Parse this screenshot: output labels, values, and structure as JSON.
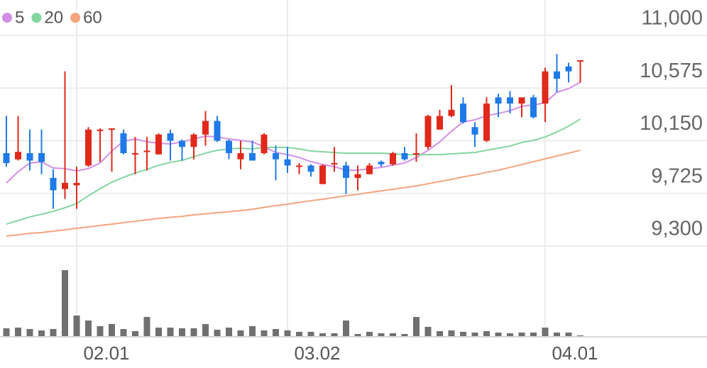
{
  "chart_data": {
    "type": "candlestick",
    "categories": [
      null,
      null,
      null,
      null,
      null,
      null,
      "02.01",
      null,
      null,
      null,
      null,
      null,
      null,
      null,
      null,
      null,
      null,
      null,
      null,
      null,
      null,
      null,
      null,
      null,
      "03.02",
      null,
      null,
      null,
      null,
      null,
      null,
      null,
      null,
      null,
      null,
      null,
      null,
      null,
      null,
      null,
      null,
      null,
      null,
      null,
      null,
      null,
      "04.01",
      null,
      null,
      null
    ],
    "open": [
      10050,
      10000,
      10050,
      10050,
      9850,
      9760,
      9790,
      9950,
      10230,
      10240,
      10210,
      10040,
      10060,
      10040,
      10210,
      10150,
      10100,
      10200,
      10310,
      10150,
      10000,
      10050,
      10050,
      10050,
      10000,
      9940,
      9950,
      9800,
      9960,
      9950,
      9850,
      9880,
      9980,
      9960,
      10050,
      10040,
      10100,
      10240,
      10350,
      10450,
      10260,
      10150,
      10500,
      10500,
      10450,
      10500,
      10450,
      10710,
      10750,
      10790
    ],
    "high": [
      10350,
      10350,
      10240,
      10240,
      9920,
      10710,
      9940,
      10260,
      10250,
      10250,
      10240,
      10180,
      10180,
      10210,
      10240,
      10160,
      10210,
      10390,
      10350,
      10160,
      10150,
      10150,
      10210,
      10110,
      10100,
      9970,
      9960,
      9960,
      10100,
      9980,
      9950,
      9970,
      9990,
      10060,
      10100,
      10210,
      10360,
      10400,
      10600,
      10500,
      10300,
      10500,
      10530,
      10550,
      10500,
      10520,
      10740,
      10850,
      10780,
      10800
    ],
    "low": [
      9940,
      9990,
      9910,
      9880,
      9600,
      9680,
      9600,
      9940,
      9980,
      9900,
      10040,
      9880,
      9910,
      10040,
      9990,
      9990,
      10000,
      10110,
      10140,
      10000,
      9920,
      9990,
      10040,
      9830,
      9890,
      9880,
      9860,
      9800,
      9900,
      9720,
      9750,
      9880,
      9940,
      9950,
      9990,
      9980,
      10080,
      10240,
      10340,
      10290,
      10100,
      10140,
      10340,
      10370,
      10340,
      10330,
      10300,
      10540,
      10620,
      10620
    ],
    "close": [
      9970,
      10060,
      9990,
      9980,
      9750,
      9810,
      9810,
      10240,
      10240,
      10250,
      10050,
      10050,
      10070,
      10200,
      10150,
      10100,
      10200,
      10310,
      10150,
      10050,
      10050,
      9990,
      10200,
      10000,
      9950,
      9950,
      9900,
      9950,
      9970,
      9850,
      9880,
      9950,
      9960,
      10050,
      10000,
      10050,
      10350,
      10350,
      10400,
      10300,
      10200,
      10450,
      10450,
      10450,
      10500,
      10340,
      10710,
      10650,
      10710,
      10800
    ],
    "up_color": "#e0291a",
    "down_color": "#1f7ae8",
    "series": [
      {
        "name": "5",
        "color": "#d38ee6",
        "values": [
          9810,
          9900,
          9970,
          9980,
          9930,
          9925,
          9907,
          9925,
          9970,
          10067,
          10147,
          10164,
          10141,
          10130,
          10124,
          10141,
          10164,
          10187,
          10181,
          10164,
          10153,
          10141,
          10101,
          10055,
          10038,
          10015,
          9981,
          9958,
          9941,
          9912,
          9912,
          9924,
          9935,
          9953,
          9970,
          10015,
          10073,
          10141,
          10227,
          10302,
          10319,
          10353,
          10370,
          10393,
          10428,
          10439,
          10456,
          10542,
          10571,
          10622
        ]
      },
      {
        "name": "20",
        "color": "#83d6a0",
        "values": [
          9477,
          9506,
          9535,
          9557,
          9580,
          9609,
          9643,
          9706,
          9763,
          9815,
          9855,
          9889,
          9918,
          9952,
          9975,
          9992,
          10021,
          10050,
          10073,
          10084,
          10090,
          10084,
          10096,
          10096,
          10096,
          10084,
          10067,
          10061,
          10055,
          10050,
          10050,
          10050,
          10050,
          10044,
          10038,
          10038,
          10038,
          10038,
          10044,
          10050,
          10055,
          10073,
          10090,
          10107,
          10136,
          10153,
          10181,
          10221,
          10267,
          10325
        ]
      },
      {
        "name": "60",
        "color": "#f4a47e",
        "values": [
          9380,
          9391,
          9403,
          9409,
          9420,
          9431,
          9443,
          9454,
          9466,
          9477,
          9489,
          9500,
          9512,
          9523,
          9532,
          9540,
          9552,
          9560,
          9569,
          9577,
          9586,
          9597,
          9612,
          9626,
          9638,
          9652,
          9666,
          9678,
          9692,
          9706,
          9718,
          9732,
          9746,
          9758,
          9772,
          9786,
          9803,
          9821,
          9838,
          9858,
          9875,
          9895,
          9912,
          9935,
          9958,
          9981,
          10004,
          10027,
          10050,
          10073
        ]
      }
    ],
    "volume": [
      11,
      12,
      10,
      8,
      10,
      93,
      29,
      22,
      14,
      17,
      10,
      7,
      27,
      12,
      12,
      11,
      11,
      17,
      9,
      12,
      8,
      14,
      8,
      10,
      8,
      6,
      6,
      4,
      4,
      22,
      3,
      6,
      4,
      4,
      3,
      27,
      13,
      7,
      8,
      6,
      5,
      7,
      5,
      4,
      5,
      5,
      12,
      5,
      5,
      1
    ],
    "volume_color": "#707070",
    "ylim": [
      9300,
      11000
    ],
    "yticks": [
      {
        "value": 9300,
        "label": "9,300"
      },
      {
        "value": 9725,
        "label": "9,725"
      },
      {
        "value": 10150,
        "label": "10,150"
      },
      {
        "value": 10575,
        "label": "10,575"
      },
      {
        "value": 11000,
        "label": "11,000"
      }
    ],
    "grid": true
  }
}
